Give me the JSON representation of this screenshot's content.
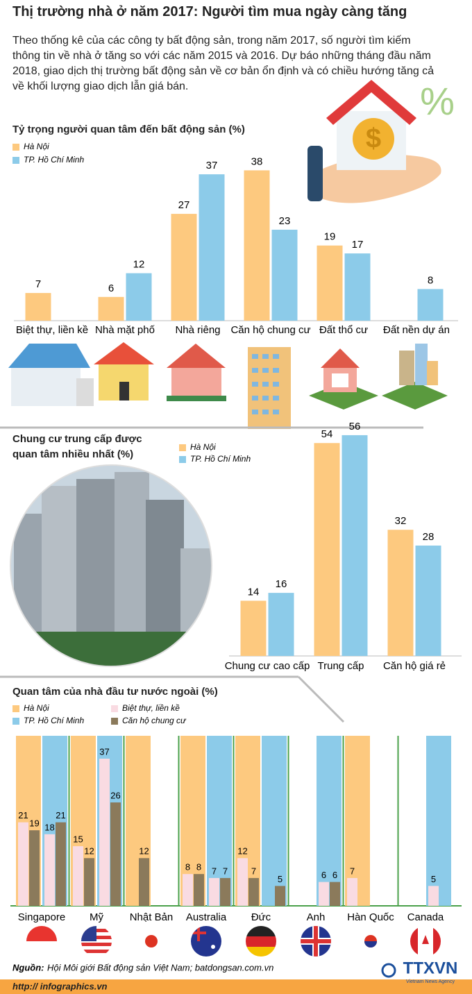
{
  "title": "Thị trường nhà ở năm 2017: Người tìm mua ngày càng tăng",
  "intro": "Theo thống kê của các công ty bất động sản, trong năm 2017, số người tìm kiếm thông tin về nhà ở tăng so với các năm 2015 và 2016. Dự báo những tháng đầu năm 2018, giao dịch thị trường bất động sản về cơ bản ổn định và có chiều hướng tăng cả về khối lượng giao dịch lẫn giá bán.",
  "chart_data": [
    {
      "type": "bar",
      "title": "Tỷ trọng người quan tâm đến bất động sản (%)",
      "categories": [
        "Biệt thự, liền kề",
        "Nhà mặt phố",
        "Nhà riêng",
        "Căn hộ chung cư",
        "Đất thổ cư",
        "Đất nền dự án"
      ],
      "series": [
        {
          "name": "Hà Nội",
          "color": "#fdc97f",
          "values": [
            7,
            6,
            27,
            38,
            19,
            null
          ]
        },
        {
          "name": "TP. Hồ Chí Minh",
          "color": "#8ccbe9",
          "values": [
            null,
            12,
            37,
            23,
            17,
            8
          ]
        }
      ]
    },
    {
      "type": "bar",
      "title": "Chung cư trung cấp được quan tâm nhiều nhất (%)",
      "categories": [
        "Chung cư cao cấp",
        "Trung cấp",
        "Căn hộ giá rẻ"
      ],
      "series": [
        {
          "name": "Hà Nội",
          "color": "#fdc97f",
          "values": [
            14,
            54,
            32
          ]
        },
        {
          "name": "TP. Hồ Chí Minh",
          "color": "#8ccbe9",
          "values": [
            16,
            56,
            28
          ]
        }
      ]
    },
    {
      "type": "bar",
      "title": "Quan tâm của nhà đầu tư nước ngoài (%)",
      "categories": [
        "Singapore",
        "Mỹ",
        "Nhật Bản",
        "Australia",
        "Đức",
        "Anh",
        "Hàn Quốc",
        "Canada"
      ],
      "groups": [
        {
          "name": "Hà Nội",
          "color": "#fdc97f"
        },
        {
          "name": "TP. Hồ Chí Minh",
          "color": "#8ccbe9"
        }
      ],
      "series": [
        {
          "name": "Biệt thự, liền kề",
          "color": "#f9dbe2",
          "values": [
            [
              21,
              18
            ],
            [
              15,
              37
            ],
            [
              null,
              null
            ],
            [
              8,
              7
            ],
            [
              12,
              null
            ],
            [
              null,
              6
            ],
            [
              7,
              null
            ],
            [
              null,
              5
            ]
          ]
        },
        {
          "name": "Căn hộ chung cư",
          "color": "#8b7a5b",
          "values": [
            [
              19,
              21
            ],
            [
              12,
              26
            ],
            [
              12,
              null
            ],
            [
              8,
              7
            ],
            [
              7,
              5
            ],
            [
              null,
              6
            ],
            [
              null,
              null
            ],
            [
              null,
              null
            ]
          ]
        }
      ]
    }
  ],
  "source_label": "Nguồn:",
  "source": "Hội Môi giới Bất động sản Việt Nam; batdongsan.com.vn",
  "url": "http:// infographics.vn",
  "logo": "TTXVN",
  "logo_subtitle": "Vietnam News Agency"
}
